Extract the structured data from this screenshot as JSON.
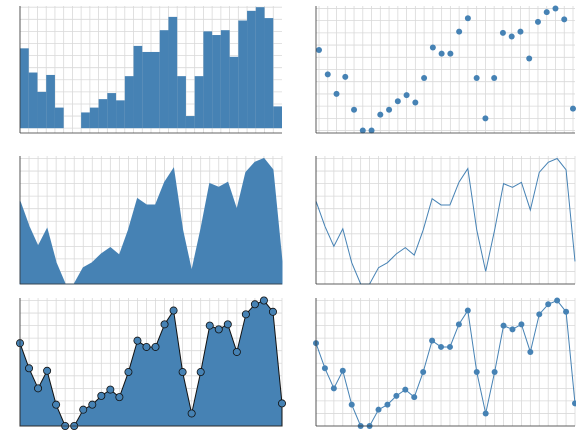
{
  "chart_data": [
    {
      "type": "bar",
      "color": "#4682b4",
      "values": [
        66,
        46,
        30,
        44,
        17,
        0,
        0,
        13,
        17,
        24,
        29,
        23,
        43,
        68,
        63,
        63,
        81,
        92,
        43,
        10,
        43,
        80,
        77,
        81,
        59,
        89,
        97,
        100,
        91,
        18
      ],
      "ylim": [
        -4,
        101
      ],
      "yticks": [
        0,
        10,
        20,
        30,
        40,
        50,
        60,
        70,
        80,
        90,
        100
      ],
      "grid": true
    },
    {
      "type": "scatter",
      "color": "#4682b4",
      "values": [
        66,
        46,
        30,
        44,
        17,
        0,
        0,
        13,
        17,
        24,
        29,
        23,
        43,
        68,
        63,
        63,
        81,
        92,
        43,
        10,
        43,
        80,
        77,
        81,
        59,
        89,
        97,
        100,
        91,
        18
      ],
      "ylim": [
        -2,
        102
      ],
      "yticks": [
        0,
        10,
        20,
        30,
        40,
        50,
        60,
        70,
        80,
        90,
        100
      ],
      "grid": true
    },
    {
      "type": "area",
      "color": "#4682b4",
      "values": [
        66,
        46,
        30,
        44,
        17,
        0,
        0,
        13,
        17,
        24,
        29,
        23,
        43,
        68,
        63,
        63,
        81,
        92,
        43,
        10,
        43,
        80,
        77,
        81,
        59,
        89,
        97,
        100,
        91,
        18
      ],
      "ylim": [
        0,
        102
      ],
      "yticks": [
        0,
        10,
        20,
        30,
        40,
        50,
        60,
        70,
        80,
        90,
        100
      ],
      "grid": true
    },
    {
      "type": "line",
      "color": "#4682b4",
      "values": [
        66,
        46,
        30,
        44,
        17,
        0,
        0,
        13,
        17,
        24,
        29,
        23,
        43,
        68,
        63,
        63,
        81,
        92,
        43,
        10,
        43,
        80,
        77,
        81,
        59,
        89,
        97,
        100,
        91,
        18
      ],
      "ylim": [
        0,
        102
      ],
      "yticks": [
        0,
        10,
        20,
        30,
        40,
        50,
        60,
        70,
        80,
        90,
        100
      ],
      "grid": true
    },
    {
      "type": "area",
      "markers": true,
      "color": "#4682b4",
      "values": [
        66,
        46,
        30,
        44,
        17,
        0,
        0,
        13,
        17,
        24,
        29,
        23,
        43,
        68,
        63,
        63,
        81,
        92,
        43,
        10,
        43,
        80,
        77,
        81,
        59,
        89,
        97,
        100,
        91,
        18
      ],
      "ylim": [
        0,
        102
      ],
      "yticks": [
        0,
        10,
        20,
        30,
        40,
        50,
        60,
        70,
        80,
        90,
        100
      ],
      "grid": true
    },
    {
      "type": "line",
      "markers": true,
      "color": "#4682b4",
      "values": [
        66,
        46,
        30,
        44,
        17,
        0,
        0,
        13,
        17,
        24,
        29,
        23,
        43,
        68,
        63,
        63,
        81,
        92,
        43,
        10,
        43,
        80,
        77,
        81,
        59,
        89,
        97,
        100,
        91,
        18
      ],
      "ylim": [
        0,
        102
      ],
      "yticks": [
        0,
        10,
        20,
        30,
        40,
        50,
        60,
        70,
        80,
        90,
        100
      ],
      "grid": true
    }
  ]
}
